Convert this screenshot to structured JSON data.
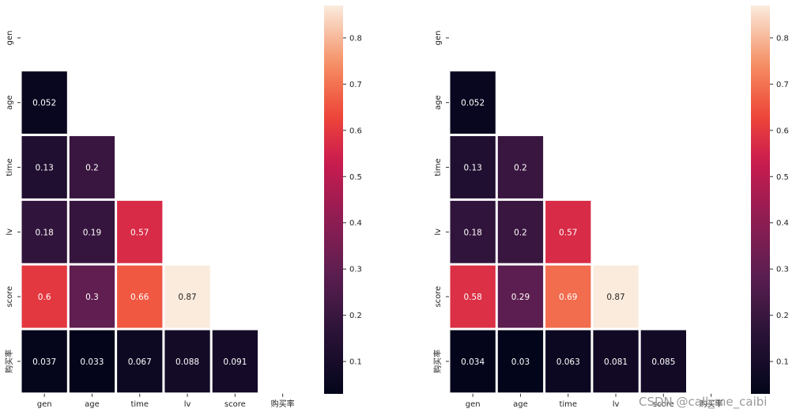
{
  "chart_data": [
    {
      "type": "heatmap",
      "title": "",
      "mask": "upper-triangle",
      "row_labels": [
        "gen",
        "age",
        "time",
        "lv",
        "score",
        "购买率"
      ],
      "col_labels": [
        "gen",
        "age",
        "time",
        "lv",
        "score",
        "购买率"
      ],
      "values": [
        [
          null,
          null,
          null,
          null,
          null,
          null
        ],
        [
          0.052,
          null,
          null,
          null,
          null,
          null
        ],
        [
          0.13,
          0.2,
          null,
          null,
          null,
          null
        ],
        [
          0.18,
          0.19,
          0.57,
          null,
          null,
          null
        ],
        [
          0.6,
          0.3,
          0.66,
          0.87,
          null,
          null
        ],
        [
          0.037,
          0.033,
          0.067,
          0.088,
          0.091,
          null
        ]
      ],
      "colorbar": {
        "range": [
          0.03,
          0.87
        ],
        "ticks": [
          0.1,
          0.2,
          0.3,
          0.4,
          0.5,
          0.6,
          0.7,
          0.8
        ],
        "tick_labels": [
          "0.1",
          "0.2",
          "0.3",
          "0.4",
          "0.5",
          "0.6",
          "0.7",
          "0.8"
        ],
        "colormap": "rocket"
      },
      "annotations": true
    },
    {
      "type": "heatmap",
      "title": "",
      "mask": "upper-triangle",
      "row_labels": [
        "gen",
        "age",
        "time",
        "lv",
        "score",
        "购买率"
      ],
      "col_labels": [
        "gen",
        "age",
        "time",
        "lv",
        "score",
        "购买率"
      ],
      "values": [
        [
          null,
          null,
          null,
          null,
          null,
          null
        ],
        [
          0.052,
          null,
          null,
          null,
          null,
          null
        ],
        [
          0.13,
          0.2,
          null,
          null,
          null,
          null
        ],
        [
          0.18,
          0.2,
          0.57,
          null,
          null,
          null
        ],
        [
          0.58,
          0.29,
          0.69,
          0.87,
          null,
          null
        ],
        [
          0.034,
          0.03,
          0.063,
          0.081,
          0.085,
          null
        ]
      ],
      "colorbar": {
        "range": [
          0.03,
          0.87
        ],
        "ticks": [
          0.1,
          0.2,
          0.3,
          0.4,
          0.5,
          0.6,
          0.7,
          0.8
        ],
        "tick_labels": [
          "0.1",
          "0.2",
          "0.3",
          "0.4",
          "0.5",
          "0.6",
          "0.7",
          "0.8"
        ],
        "colormap": "rocket"
      },
      "annotations": true
    }
  ],
  "watermark": {
    "text": "CSDN @call_me_caibi"
  }
}
